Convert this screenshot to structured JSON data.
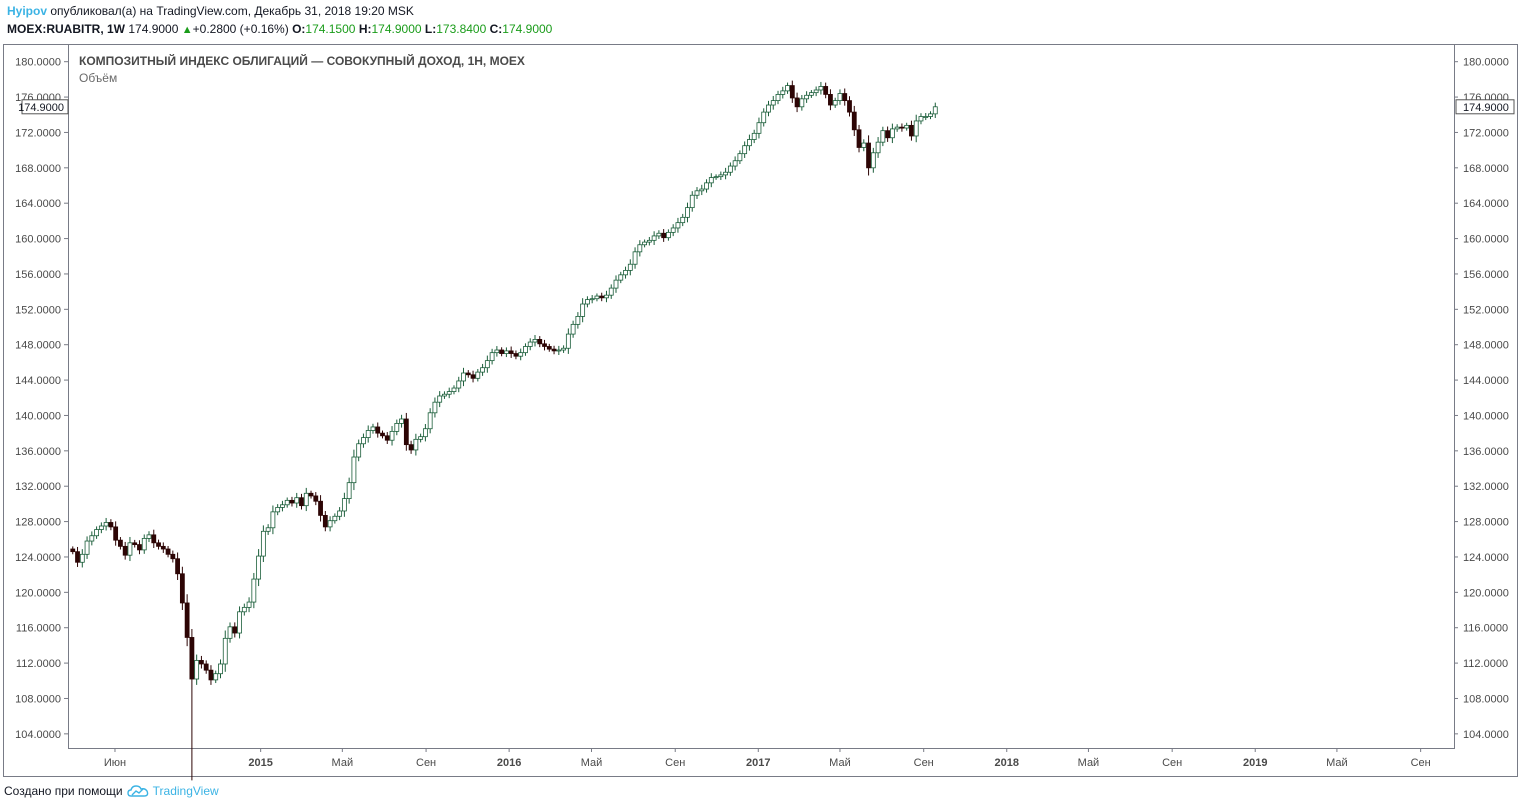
{
  "header": {
    "user": "Hyipov",
    "published_text": "опубликовал(а) на TradingView.com, Декабрь 31, 2018 19:20 MSK",
    "symbol": "MOEX:RUABITR, 1W",
    "last": "174.9000",
    "change": "+0.2800 (+0.16%)",
    "o_label": "O:",
    "o_value": "174.1500",
    "h_label": "H:",
    "h_value": "174.9000",
    "l_label": "L:",
    "l_value": "173.8400",
    "c_label": "C:",
    "c_value": "174.9000",
    "triangle_icon": "triangle-up-icon"
  },
  "footer": {
    "created_text": "Создано при помощи",
    "brand": "TradingView",
    "logo_icon": "tradingview-cloud-icon"
  },
  "colors": {
    "up_fill": "#ffffff",
    "up_border": "#1b5e3a",
    "down_fill": "#2d0505",
    "frame": "#787b86",
    "accent": "#3bb3e4"
  },
  "chart_data": {
    "type": "candlestick",
    "title": "КОМПОЗИТНЫЙ ИНДЕКС ОБЛИГАЦИЙ — СОВОКУПНЫЙ ДОХОД, 1Н, MOEX",
    "subtitle": "Объём",
    "ylim": [
      102.4,
      182
    ],
    "y_ticks": [
      "180.0000",
      "176.0000",
      "172.0000",
      "168.0000",
      "164.0000",
      "160.0000",
      "156.0000",
      "152.0000",
      "148.0000",
      "144.0000",
      "140.0000",
      "136.0000",
      "132.0000",
      "128.0000",
      "124.0000",
      "120.0000",
      "116.0000",
      "112.0000",
      "108.0000",
      "104.0000"
    ],
    "last_price_label": "174.9000",
    "x_ticks": [
      {
        "label": "Июн",
        "date": "2014-06-01",
        "bold": false
      },
      {
        "label": "2015",
        "date": "2015-01-01",
        "bold": true
      },
      {
        "label": "Май",
        "date": "2015-05-01",
        "bold": false
      },
      {
        "label": "Сен",
        "date": "2015-09-01",
        "bold": false
      },
      {
        "label": "2016",
        "date": "2016-01-01",
        "bold": true
      },
      {
        "label": "Май",
        "date": "2016-05-01",
        "bold": false
      },
      {
        "label": "Сен",
        "date": "2016-09-01",
        "bold": false
      },
      {
        "label": "2017",
        "date": "2017-01-01",
        "bold": true
      },
      {
        "label": "Май",
        "date": "2017-05-01",
        "bold": false
      },
      {
        "label": "Сен",
        "date": "2017-09-01",
        "bold": false
      },
      {
        "label": "2018",
        "date": "2018-01-01",
        "bold": true
      },
      {
        "label": "Май",
        "date": "2018-05-01",
        "bold": false
      },
      {
        "label": "Сен",
        "date": "2018-09-01",
        "bold": false
      },
      {
        "label": "2019",
        "date": "2019-01-01",
        "bold": true
      },
      {
        "label": "Май",
        "date": "2019-05-01",
        "bold": false
      },
      {
        "label": "Сен",
        "date": "2019-09-01",
        "bold": false
      }
    ],
    "x_range": [
      "2014-03-24",
      "2019-10-20"
    ],
    "grid": false,
    "closes": [
      124.6,
      123.4,
      124.3,
      125.8,
      126.4,
      127.1,
      127.5,
      127.9,
      127.4,
      125.9,
      125.2,
      124.2,
      125.6,
      125.4,
      124.8,
      126.1,
      126.5,
      125.6,
      125.2,
      124.9,
      124.3,
      123.8,
      122.1,
      118.8,
      114.9,
      110.2,
      112.3,
      111.9,
      111.2,
      110.1,
      110.8,
      111.9,
      114.8,
      116.1,
      115.4,
      117.8,
      118.3,
      118.9,
      121.5,
      124.1,
      126.9,
      127.3,
      129.1,
      129.6,
      129.9,
      130.4,
      130.1,
      130.7,
      129.8,
      131.2,
      130.9,
      130.3,
      128.7,
      127.4,
      128.1,
      128.6,
      129.2,
      130.6,
      132.4,
      135.3,
      136.8,
      137.5,
      138.3,
      138.7,
      138.0,
      137.7,
      137.2,
      138.2,
      139.1,
      139.6,
      136.7,
      136.1,
      137.3,
      137.6,
      138.5,
      140.3,
      141.5,
      142.2,
      142.4,
      142.7,
      143.1,
      143.9,
      144.8,
      144.6,
      144.2,
      144.9,
      145.4,
      146.2,
      147.1,
      147.4,
      147.0,
      147.3,
      147.0,
      146.7,
      147.1,
      147.8,
      148.3,
      148.6,
      148.1,
      147.8,
      147.5,
      147.3,
      147.4,
      147.6,
      149.2,
      150.3,
      151.2,
      152.6,
      153.1,
      153.2,
      153.5,
      153.3,
      153.6,
      154.4,
      155.3,
      155.9,
      156.4,
      157.1,
      158.5,
      159.3,
      159.6,
      159.8,
      160.3,
      160.6,
      160.1,
      160.7,
      161.2,
      161.8,
      162.4,
      163.5,
      164.9,
      165.4,
      165.6,
      166.3,
      166.9,
      167.0,
      167.2,
      167.5,
      168.2,
      168.8,
      169.6,
      170.5,
      171.2,
      171.9,
      173.1,
      174.3,
      175.1,
      175.6,
      176.3,
      176.7,
      177.3,
      175.9,
      174.9,
      175.8,
      176.2,
      176.5,
      176.8,
      177.2,
      176.3,
      175.1,
      175.6,
      176.4,
      175.6,
      174.3,
      172.3,
      170.3,
      170.8,
      168.0,
      169.7,
      170.9,
      172.2,
      171.4,
      172.4,
      172.6,
      172.5,
      172.8,
      171.6,
      173.3,
      173.8,
      173.8,
      174.1,
      174.9
    ]
  }
}
